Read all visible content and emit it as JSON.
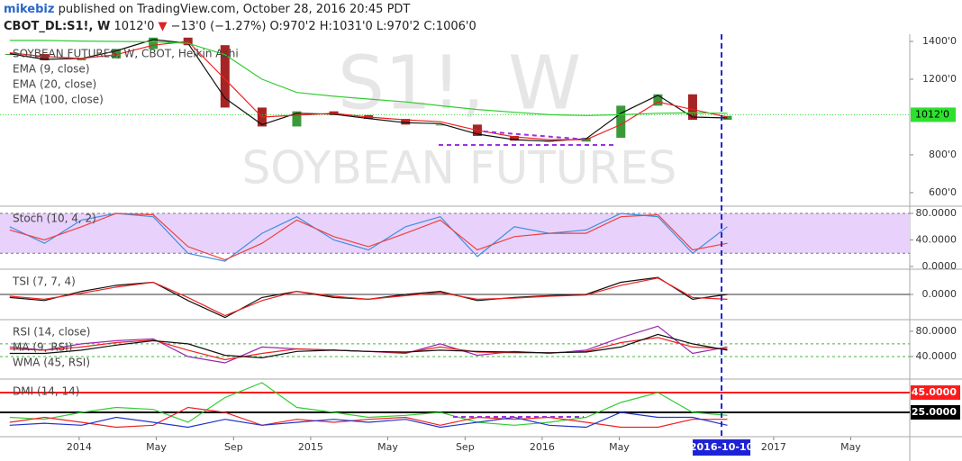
{
  "header": {
    "author": "mikebiz",
    "published": "published on TradingView.com, October 28, 2016 20:45 PDT",
    "symbol": "CBOT_DL:S1!, W",
    "last": "1012'0",
    "arrow": "▼",
    "change": "−13'0 (−1.27%)",
    "ohlc": "O:970'2 H:1031'0 L:970'2 C:1006'0"
  },
  "watermark": {
    "symbol": "S1!, W",
    "description": "SOYBEAN FUTURES"
  },
  "time_axis": {
    "xlim": [
      2013.658,
      2017.588
    ],
    "xticks": [
      {
        "value": 2014.0,
        "label": "2014"
      },
      {
        "value": 2014.333,
        "label": "May"
      },
      {
        "value": 2014.667,
        "label": "Sep"
      },
      {
        "value": 2015.0,
        "label": "2015"
      },
      {
        "value": 2015.333,
        "label": "May"
      },
      {
        "value": 2015.667,
        "label": "Sep"
      },
      {
        "value": 2016.0,
        "label": "2016"
      },
      {
        "value": 2016.333,
        "label": "May"
      },
      {
        "value": 2017.0,
        "label": "2017"
      },
      {
        "value": 2017.333,
        "label": "May"
      }
    ],
    "cursor": {
      "value": 2016.775,
      "label": "2016-10-10",
      "color": "#1e22d6"
    }
  },
  "chart_data": [
    {
      "type": "candlestick",
      "name": "SOYBEAN FUTURES, W, CBOT, Heikin Ashi",
      "up_color": "#3a9a3a",
      "down_color": "#a52424",
      "x": [
        2013.7,
        2013.85,
        2014.01,
        2014.16,
        2014.32,
        2014.47,
        2014.63,
        2014.79,
        2014.94,
        2015.1,
        2015.25,
        2015.41,
        2015.56,
        2015.72,
        2015.88,
        2016.03,
        2016.19,
        2016.34,
        2016.5,
        2016.65,
        2016.8
      ],
      "values": [
        1333,
        1300,
        1310,
        1360,
        1420,
        1380,
        1050,
        950,
        1030,
        1010,
        990,
        960,
        960,
        900,
        875,
        870,
        890,
        1060,
        1120,
        985,
        1006
      ],
      "ylim": [
        533,
        1438
      ],
      "yticks": [
        {
          "value": 1400,
          "label": "1400'0"
        },
        {
          "value": 1200,
          "label": "1200'0"
        },
        {
          "value": 800,
          "label": "800'0"
        },
        {
          "value": 600,
          "label": "600'0"
        }
      ],
      "last": {
        "value": 1012,
        "label": "1012'0",
        "color": "#2ee02e"
      },
      "series": [
        {
          "name": "EMA (9, close)",
          "color": "#111111",
          "values": [
            1335,
            1305,
            1310,
            1350,
            1410,
            1390,
            1100,
            960,
            1020,
            1015,
            992,
            970,
            965,
            910,
            880,
            872,
            885,
            1020,
            1115,
            1000,
            995
          ]
        },
        {
          "name": "EMA (20, close)",
          "color": "#ee2222",
          "values": [
            1340,
            1320,
            1310,
            1330,
            1380,
            1400,
            1200,
            1000,
            1010,
            1020,
            1000,
            985,
            975,
            930,
            895,
            880,
            880,
            960,
            1080,
            1040,
            1000
          ]
        },
        {
          "name": "EMA (100, close)",
          "color": "#33cc33",
          "values": [
            1405,
            1405,
            1402,
            1400,
            1398,
            1390,
            1330,
            1200,
            1130,
            1110,
            1095,
            1080,
            1060,
            1040,
            1025,
            1012,
            1008,
            1012,
            1020,
            1022,
            1020
          ]
        }
      ]
    },
    {
      "type": "line",
      "name": "Stoch (10, 4, 2)",
      "band": [
        20,
        80
      ],
      "band_color": "#e8d2fb",
      "x": [
        2013.7,
        2013.85,
        2014.01,
        2014.16,
        2014.32,
        2014.47,
        2014.63,
        2014.79,
        2014.94,
        2015.1,
        2015.25,
        2015.41,
        2015.56,
        2015.72,
        2015.88,
        2016.03,
        2016.19,
        2016.34,
        2016.5,
        2016.65,
        2016.8
      ],
      "ylim": [
        -2.7,
        89.5
      ],
      "yticks": [
        {
          "value": 80,
          "label": "80.0000"
        },
        {
          "value": 40,
          "label": "40.0000"
        },
        {
          "value": 0,
          "label": "0.0000"
        }
      ],
      "series": [
        {
          "color": "#3d8fe0",
          "values": [
            60,
            35,
            70,
            80,
            75,
            20,
            8,
            50,
            75,
            40,
            25,
            60,
            75,
            15,
            60,
            50,
            55,
            80,
            75,
            20,
            60
          ]
        },
        {
          "color": "#f04040",
          "values": [
            55,
            40,
            60,
            80,
            78,
            30,
            10,
            35,
            70,
            45,
            30,
            50,
            70,
            25,
            45,
            50,
            50,
            75,
            78,
            25,
            35
          ]
        }
      ]
    },
    {
      "type": "line",
      "name": "TSI (7, 7, 4)",
      "hline": 0,
      "x": [
        2013.7,
        2013.85,
        2014.01,
        2014.16,
        2014.32,
        2014.47,
        2014.63,
        2014.79,
        2014.94,
        2015.1,
        2015.25,
        2015.41,
        2015.56,
        2015.72,
        2015.88,
        2016.03,
        2016.19,
        2016.34,
        2016.5,
        2016.65,
        2016.8
      ],
      "ylim": [
        -40,
        40
      ],
      "yticks": [
        {
          "value": 0,
          "label": "0.0000"
        }
      ],
      "series": [
        {
          "color": "#111111",
          "values": [
            -5,
            -10,
            5,
            15,
            20,
            -10,
            -38,
            -5,
            5,
            -5,
            -8,
            0,
            5,
            -10,
            -5,
            -2,
            0,
            20,
            28,
            -8,
            0
          ]
        },
        {
          "color": "#ee2222",
          "values": [
            -3,
            -8,
            2,
            12,
            20,
            -5,
            -35,
            -10,
            5,
            -3,
            -8,
            -2,
            3,
            -8,
            -6,
            -3,
            -1,
            15,
            27,
            -5,
            -8
          ]
        }
      ]
    },
    {
      "type": "line",
      "band": [
        40,
        60
      ],
      "band_line_color": "#3cb83c",
      "x": [
        2013.7,
        2013.85,
        2014.01,
        2014.16,
        2014.32,
        2014.47,
        2014.63,
        2014.79,
        2014.94,
        2015.1,
        2015.25,
        2015.41,
        2015.56,
        2015.72,
        2015.88,
        2016.03,
        2016.19,
        2016.34,
        2016.5,
        2016.65,
        2016.8
      ],
      "ylim": [
        5.7,
        97
      ],
      "yticks": [
        {
          "value": 80,
          "label": "80.0000"
        },
        {
          "value": 40,
          "label": "40.0000"
        }
      ],
      "series": [
        {
          "name": "RSI (14, close)",
          "color": "#9c27b0",
          "values": [
            55,
            50,
            60,
            65,
            68,
            40,
            30,
            55,
            52,
            50,
            48,
            45,
            60,
            42,
            48,
            45,
            50,
            70,
            88,
            45,
            55
          ]
        },
        {
          "name": "MA (9, RSI)",
          "color": "#ee2222",
          "values": [
            52,
            50,
            55,
            62,
            66,
            50,
            35,
            45,
            52,
            50,
            48,
            46,
            55,
            47,
            46,
            46,
            48,
            62,
            70,
            55,
            52
          ]
        },
        {
          "name": "WMA (45, RSI)",
          "color": "#111111",
          "values": [
            45,
            45,
            50,
            58,
            65,
            60,
            42,
            38,
            48,
            50,
            48,
            47,
            50,
            48,
            47,
            46,
            47,
            55,
            75,
            60,
            50
          ]
        }
      ]
    },
    {
      "type": "line",
      "name": "DMI (14, 14)",
      "x": [
        2013.7,
        2013.85,
        2014.01,
        2014.16,
        2014.32,
        2014.47,
        2014.63,
        2014.79,
        2014.94,
        2015.1,
        2015.25,
        2015.41,
        2015.56,
        2015.72,
        2015.88,
        2016.03,
        2016.19,
        2016.34,
        2016.5,
        2016.65,
        2016.8
      ],
      "ylim": [
        1.4,
        57.7
      ],
      "hlines": [
        {
          "value": 45,
          "label": "45.0000",
          "color": "#ff1a1a"
        },
        {
          "value": 25,
          "label": "25.0000",
          "color": "#000000"
        }
      ],
      "series": [
        {
          "color": "#33cc33",
          "values": [
            20,
            18,
            25,
            30,
            28,
            15,
            40,
            55,
            30,
            25,
            20,
            22,
            25,
            15,
            12,
            15,
            20,
            35,
            45,
            25,
            22
          ]
        },
        {
          "color": "#ee2222",
          "values": [
            15,
            20,
            15,
            10,
            12,
            30,
            25,
            12,
            18,
            15,
            18,
            20,
            12,
            20,
            18,
            20,
            15,
            10,
            10,
            18,
            18
          ]
        },
        {
          "color": "#2233cc",
          "values": [
            12,
            14,
            12,
            20,
            15,
            10,
            18,
            12,
            15,
            18,
            15,
            18,
            10,
            15,
            20,
            12,
            10,
            25,
            20,
            20,
            12
          ]
        }
      ]
    }
  ]
}
